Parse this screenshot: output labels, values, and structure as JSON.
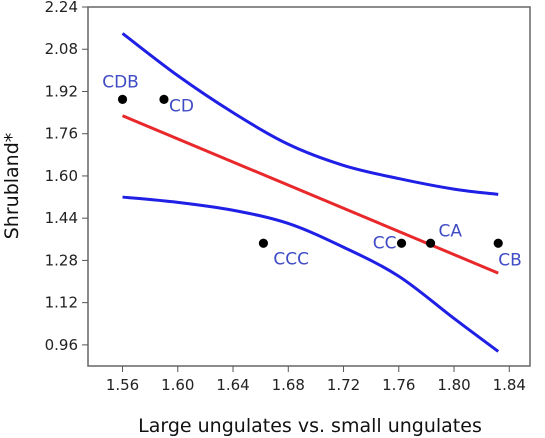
{
  "chart_data": {
    "type": "scatter",
    "title": "",
    "xlabel": "Large ungulates vs. small ungulates",
    "ylabel": "Shrubland*",
    "xlim": [
      1.535,
      1.855
    ],
    "ylim": [
      0.88,
      2.24
    ],
    "x_ticks": [
      "1.56",
      "1.60",
      "1.64",
      "1.68",
      "1.72",
      "1.76",
      "1.80",
      "1.84"
    ],
    "y_ticks": [
      "2.24",
      "2.08",
      "1.92",
      "1.76",
      "1.60",
      "1.44",
      "1.28",
      "1.12",
      "0.96"
    ],
    "grid": false,
    "points": [
      {
        "label": "CDB",
        "x": 1.56,
        "y": 1.89
      },
      {
        "label": "CD",
        "x": 1.59,
        "y": 1.89
      },
      {
        "label": "CCC",
        "x": 1.662,
        "y": 1.345
      },
      {
        "label": "CC",
        "x": 1.762,
        "y": 1.345
      },
      {
        "label": "CA",
        "x": 1.783,
        "y": 1.345
      },
      {
        "label": "CB",
        "x": 1.832,
        "y": 1.345
      }
    ],
    "fit_line": {
      "x": [
        1.56,
        1.832
      ],
      "y": [
        1.828,
        1.232
      ]
    },
    "upper_band": {
      "x": [
        1.56,
        1.6,
        1.64,
        1.68,
        1.72,
        1.76,
        1.8,
        1.832
      ],
      "y": [
        2.14,
        1.98,
        1.84,
        1.72,
        1.64,
        1.59,
        1.55,
        1.53
      ]
    },
    "lower_band": {
      "x": [
        1.56,
        1.6,
        1.64,
        1.68,
        1.72,
        1.76,
        1.8,
        1.832
      ],
      "y": [
        1.52,
        1.5,
        1.47,
        1.42,
        1.33,
        1.22,
        1.06,
        0.935
      ]
    },
    "colors": {
      "fit": "#e8282b",
      "band": "#1f1fe6",
      "point": "#000000",
      "point_label": "#3f4bc4"
    }
  }
}
